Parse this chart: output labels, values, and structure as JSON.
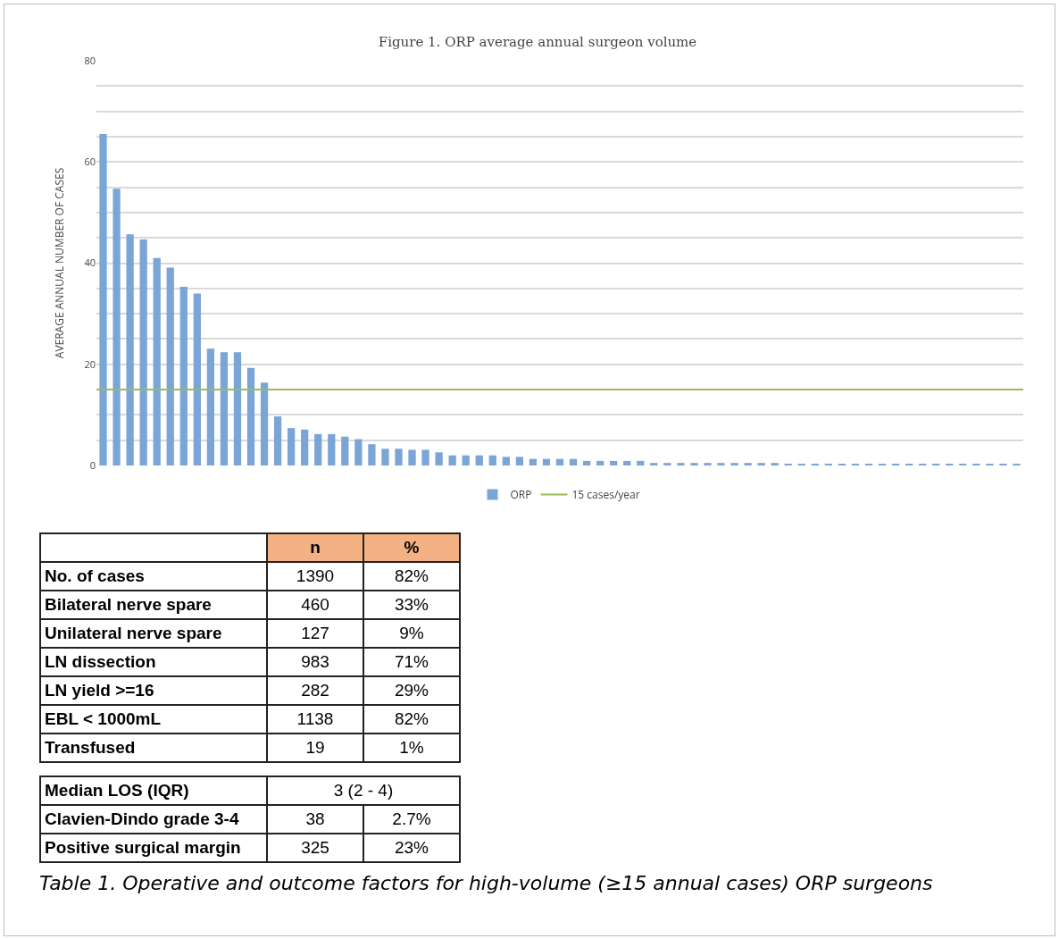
{
  "chart_data": [
    {
      "type": "bar",
      "title": "Figure 1. ORP average annual surgeon volume",
      "ylabel": "AVERAGE ANNUAL NUMBER OF CASES",
      "categories": [
        null,
        null,
        null,
        null,
        null,
        null,
        null,
        null,
        null,
        null,
        null,
        null,
        null,
        null,
        null,
        null,
        null,
        null,
        null,
        null,
        null,
        null,
        null,
        null,
        null,
        null,
        null,
        null,
        null,
        null,
        null,
        null,
        null,
        null,
        null,
        null,
        null,
        null,
        null,
        null,
        null,
        null,
        null,
        null,
        null,
        null,
        null,
        null,
        null,
        null,
        null,
        null,
        null,
        null,
        null,
        null,
        null,
        null,
        null,
        null,
        null,
        null,
        null,
        null,
        null,
        null,
        null,
        null,
        null
      ],
      "series": [
        {
          "name": "ORP",
          "color": "#7ba4d7",
          "values": [
            65.5,
            54.7,
            45.7,
            44.7,
            41.0,
            39.1,
            35.3,
            34.0,
            23.1,
            22.4,
            22.4,
            19.3,
            16.4,
            9.7,
            7.4,
            7.1,
            6.2,
            6.2,
            5.7,
            5.2,
            4.2,
            3.3,
            3.3,
            3.1,
            3.1,
            2.6,
            2.0,
            2.0,
            2.0,
            2.0,
            1.7,
            1.7,
            1.3,
            1.3,
            1.3,
            1.3,
            0.9,
            0.9,
            0.9,
            0.9,
            0.9,
            0.5,
            0.5,
            0.5,
            0.5,
            0.5,
            0.5,
            0.5,
            0.5,
            0.5,
            0.5,
            0.3,
            0.3,
            0.3,
            0.3,
            0.3,
            0.3,
            0.3,
            0.3,
            0.3,
            0.3,
            0.3,
            0.3,
            0.3,
            0.3,
            0.3,
            0.3,
            0.3,
            0.3
          ]
        }
      ],
      "ref_lines": [
        {
          "axis": "y",
          "value": 15,
          "label": "15 cases/year",
          "color": "#9bbb59"
        }
      ],
      "ylim": [
        0,
        80
      ],
      "yticks": [
        0,
        {
          "value": 5,
          "label": null
        },
        {
          "value": 10,
          "label": null
        },
        {
          "value": 15,
          "label": null
        },
        20,
        {
          "value": 25,
          "label": null
        },
        {
          "value": 30,
          "label": null
        },
        {
          "value": 35,
          "label": null
        },
        40,
        {
          "value": 45,
          "label": null
        },
        {
          "value": 50,
          "label": null
        },
        {
          "value": 55,
          "label": null
        },
        60,
        {
          "value": 65,
          "label": null
        },
        {
          "value": 70,
          "label": null
        },
        {
          "value": 75,
          "label": null
        },
        80
      ],
      "grid": "y",
      "legend": "bottom",
      "tick_labels": "y"
    },
    {
      "type": "other",
      "title": "Table 1. Operative and outcome factors for high-volume (≥15 annual cases) ORP surgeons",
      "annotations": [
        "n",
        "%",
        "No. of cases",
        "1390",
        "82%",
        "Bilateral nerve spare",
        "460",
        "33%",
        "Unilateral nerve spare",
        "127",
        "9%",
        "LN dissection",
        "983",
        "71%",
        "LN yield >=16",
        "282",
        "29%",
        "EBL < 1000mL",
        "1138",
        "82%",
        "Transfused",
        "19",
        "1%",
        "Median LOS (IQR)",
        "3 (2 - 4)",
        "Clavien-Dindo grade 3-4",
        "38",
        "2.7%",
        "Positive surgical margin",
        "325",
        "23%"
      ]
    }
  ]
}
